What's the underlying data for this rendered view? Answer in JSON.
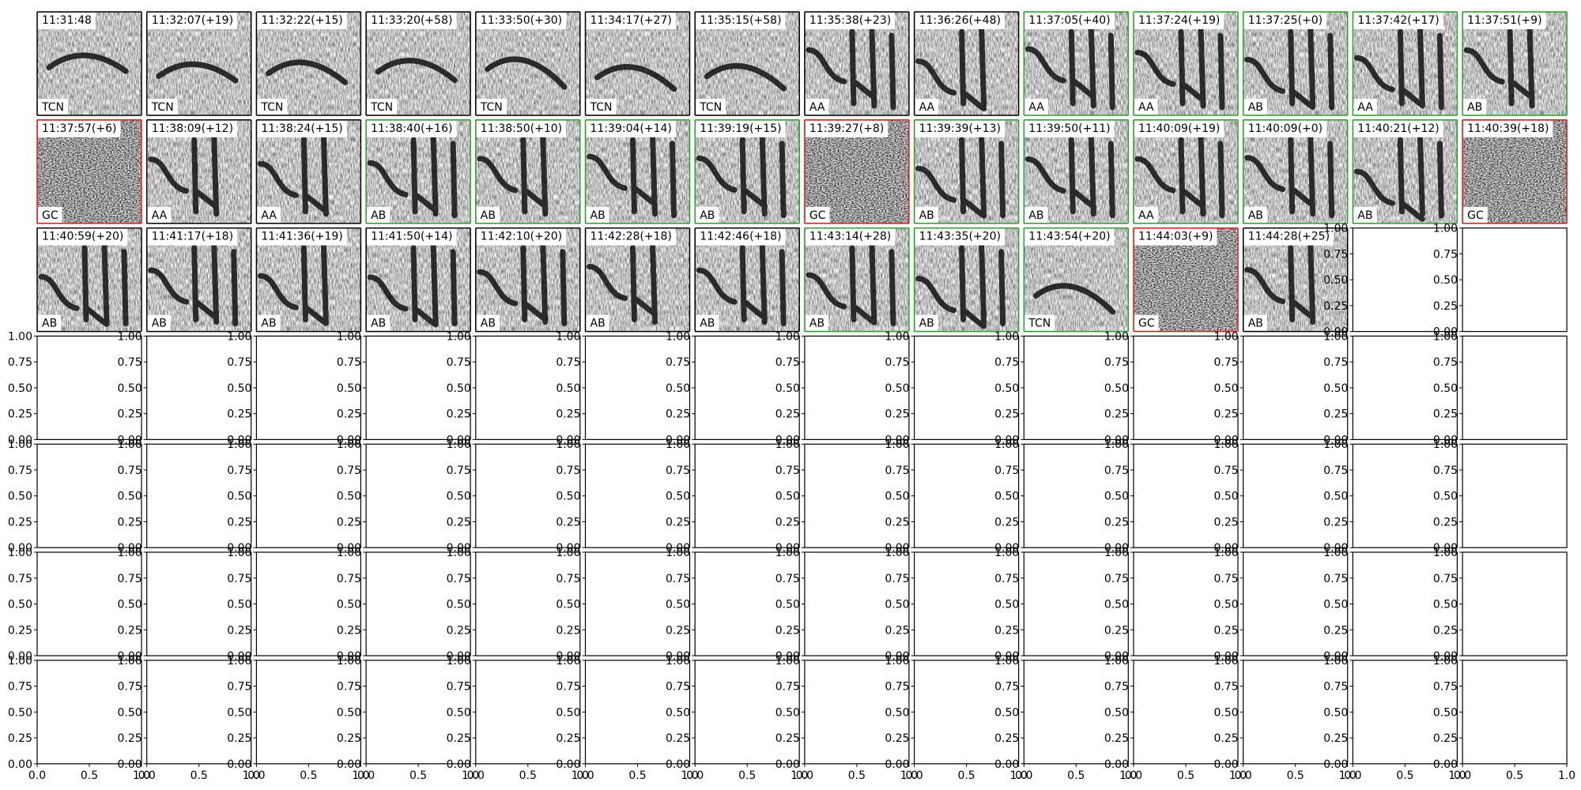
{
  "panels": [
    {
      "time": "11:31:48",
      "label": "TCN",
      "frame": "#000000"
    },
    {
      "time": "11:32:07(+19)",
      "label": "TCN",
      "frame": "#000000"
    },
    {
      "time": "11:32:22(+15)",
      "label": "TCN",
      "frame": "#000000"
    },
    {
      "time": "11:33:20(+58)",
      "label": "TCN",
      "frame": "#000000"
    },
    {
      "time": "11:33:50(+30)",
      "label": "TCN",
      "frame": "#000000"
    },
    {
      "time": "11:34:17(+27)",
      "label": "TCN",
      "frame": "#000000"
    },
    {
      "time": "11:35:15(+58)",
      "label": "TCN",
      "frame": "#000000"
    },
    {
      "time": "11:35:38(+23)",
      "label": "AA",
      "frame": "#000000"
    },
    {
      "time": "11:36:26(+48)",
      "label": "AA",
      "frame": "#000000"
    },
    {
      "time": "11:37:05(+40)",
      "label": "AA",
      "frame": "#2ca02c"
    },
    {
      "time": "11:37:24(+19)",
      "label": "AA",
      "frame": "#2ca02c"
    },
    {
      "time": "11:37:25(+0)",
      "label": "AB",
      "frame": "#2ca02c"
    },
    {
      "time": "11:37:42(+17)",
      "label": "AA",
      "frame": "#2ca02c"
    },
    {
      "time": "11:37:51(+9)",
      "label": "AB",
      "frame": "#2ca02c"
    },
    {
      "time": "11:37:57(+6)",
      "label": "GC",
      "frame": "#e31a1c"
    },
    {
      "time": "11:38:09(+12)",
      "label": "AA",
      "frame": "#000000"
    },
    {
      "time": "11:38:24(+15)",
      "label": "AA",
      "frame": "#000000"
    },
    {
      "time": "11:38:40(+16)",
      "label": "AB",
      "frame": "#2ca02c"
    },
    {
      "time": "11:38:50(+10)",
      "label": "AB",
      "frame": "#2ca02c"
    },
    {
      "time": "11:39:04(+14)",
      "label": "AB",
      "frame": "#2ca02c"
    },
    {
      "time": "11:39:19(+15)",
      "label": "AB",
      "frame": "#2ca02c"
    },
    {
      "time": "11:39:27(+8)",
      "label": "GC",
      "frame": "#e31a1c"
    },
    {
      "time": "11:39:39(+13)",
      "label": "AB",
      "frame": "#2ca02c"
    },
    {
      "time": "11:39:50(+11)",
      "label": "AB",
      "frame": "#2ca02c"
    },
    {
      "time": "11:40:09(+19)",
      "label": "AA",
      "frame": "#2ca02c"
    },
    {
      "time": "11:40:09(+0)",
      "label": "AB",
      "frame": "#2ca02c"
    },
    {
      "time": "11:40:21(+12)",
      "label": "AB",
      "frame": "#2ca02c"
    },
    {
      "time": "11:40:39(+18)",
      "label": "GC",
      "frame": "#e31a1c"
    },
    {
      "time": "11:40:59(+20)",
      "label": "AB",
      "frame": "#000000"
    },
    {
      "time": "11:41:17(+18)",
      "label": "AB",
      "frame": "#000000"
    },
    {
      "time": "11:41:36(+19)",
      "label": "AB",
      "frame": "#000000"
    },
    {
      "time": "11:41:50(+14)",
      "label": "AB",
      "frame": "#000000"
    },
    {
      "time": "11:42:10(+20)",
      "label": "AB",
      "frame": "#000000"
    },
    {
      "time": "11:42:28(+18)",
      "label": "AB",
      "frame": "#000000"
    },
    {
      "time": "11:42:46(+18)",
      "label": "AB",
      "frame": "#000000"
    },
    {
      "time": "11:43:14(+28)",
      "label": "AB",
      "frame": "#2ca02c"
    },
    {
      "time": "11:43:35(+20)",
      "label": "AB",
      "frame": "#2ca02c"
    },
    {
      "time": "11:43:54(+20)",
      "label": "TCN",
      "frame": "#2ca02c"
    },
    {
      "time": "11:44:03(+9)",
      "label": "GC",
      "frame": "#e31a1c"
    },
    {
      "time": "11:44:28(+25)",
      "label": "AB",
      "frame": "#000000"
    }
  ],
  "axis_ticks": {
    "y": [
      {
        "value": 0,
        "label": "0.00"
      },
      {
        "value": 0.25,
        "label": "0.25"
      },
      {
        "value": 0.5,
        "label": "0.50"
      },
      {
        "value": 0.75,
        "label": "0.75"
      },
      {
        "value": 1,
        "label": "1.00"
      }
    ],
    "x": [
      {
        "value": 0,
        "label": "0.0"
      },
      {
        "value": 0.5,
        "label": "0.5"
      },
      {
        "value": 1,
        "label": "1.0"
      }
    ]
  }
}
